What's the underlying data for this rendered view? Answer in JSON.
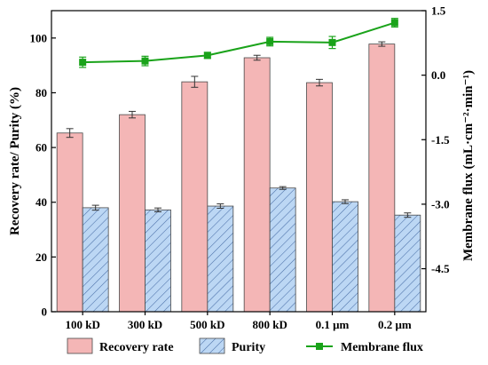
{
  "chart_data": {
    "type": "bar",
    "categories": [
      "100 kD",
      "300 kD",
      "500 kD",
      "800 kD",
      "0.1 μm",
      "0.2 μm"
    ],
    "series": [
      {
        "name": "Recovery rate",
        "kind": "bar",
        "axis": "left",
        "color": "#f4b6b6",
        "hatch": false,
        "values": [
          65.3,
          72.0,
          84.0,
          92.8,
          83.7,
          97.8
        ],
        "errors": [
          1.6,
          1.2,
          2.0,
          0.9,
          1.2,
          0.8
        ]
      },
      {
        "name": "Purity",
        "kind": "bar",
        "axis": "left",
        "color": "#bcd7f4",
        "hatch": true,
        "values": [
          38.0,
          37.2,
          38.6,
          45.2,
          40.2,
          35.3
        ],
        "errors": [
          0.9,
          0.7,
          0.8,
          0.5,
          0.7,
          0.8
        ]
      },
      {
        "name": "Membrane flux",
        "kind": "line",
        "axis": "right",
        "color": "#1aa31a",
        "values": [
          0.3,
          0.33,
          0.46,
          0.78,
          0.76,
          1.22
        ],
        "errors": [
          0.12,
          0.11,
          0.07,
          0.1,
          0.14,
          0.1
        ]
      }
    ],
    "ylabel": "Recovery rate/ Purity (%)",
    "y2label": "Membrane flux",
    "y2label_units": "(mL·cm⁻²·min⁻¹)",
    "ylim": [
      0,
      110
    ],
    "y2lim": [
      -5.5,
      1.5
    ],
    "yticks": [
      "0",
      "20",
      "40",
      "60",
      "80",
      "100"
    ],
    "y2ticks": [
      "-4.5",
      "-3.0",
      "-1.5",
      "0.0",
      "1.5"
    ],
    "legend_position": "bottom",
    "grid": false
  }
}
